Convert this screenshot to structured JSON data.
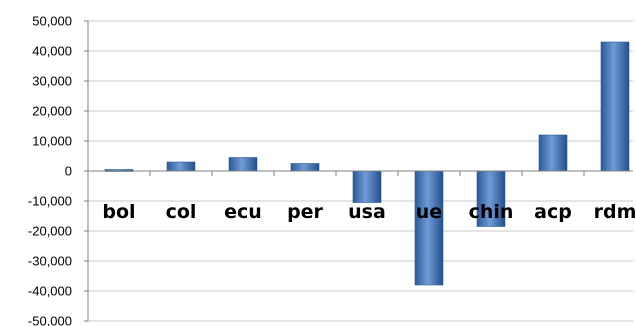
{
  "chart_data": {
    "type": "bar",
    "title": "",
    "xlabel": "",
    "ylabel": "",
    "categories": [
      "bol",
      "col",
      "ecu",
      "per",
      "usa",
      "ue",
      "chin",
      "acp",
      "rdm"
    ],
    "values": [
      500,
      3000,
      4500,
      2500,
      -10500,
      -38000,
      -18500,
      12000,
      43000
    ],
    "ylim": [
      -50000,
      50000
    ],
    "yticks": [
      50000,
      40000,
      30000,
      20000,
      10000,
      0,
      -10000,
      -20000,
      -30000,
      -40000,
      -50000
    ],
    "ytick_labels": [
      "50,000",
      "40,000",
      "30,000",
      "20,000",
      "10,000",
      "0",
      "-10,000",
      "-20,000",
      "-30,000",
      "-40,000",
      "-50,000"
    ],
    "grid": true,
    "legend": "none",
    "bar_color": "#4f81bd",
    "bar_color_dark": "#2a5a98"
  }
}
